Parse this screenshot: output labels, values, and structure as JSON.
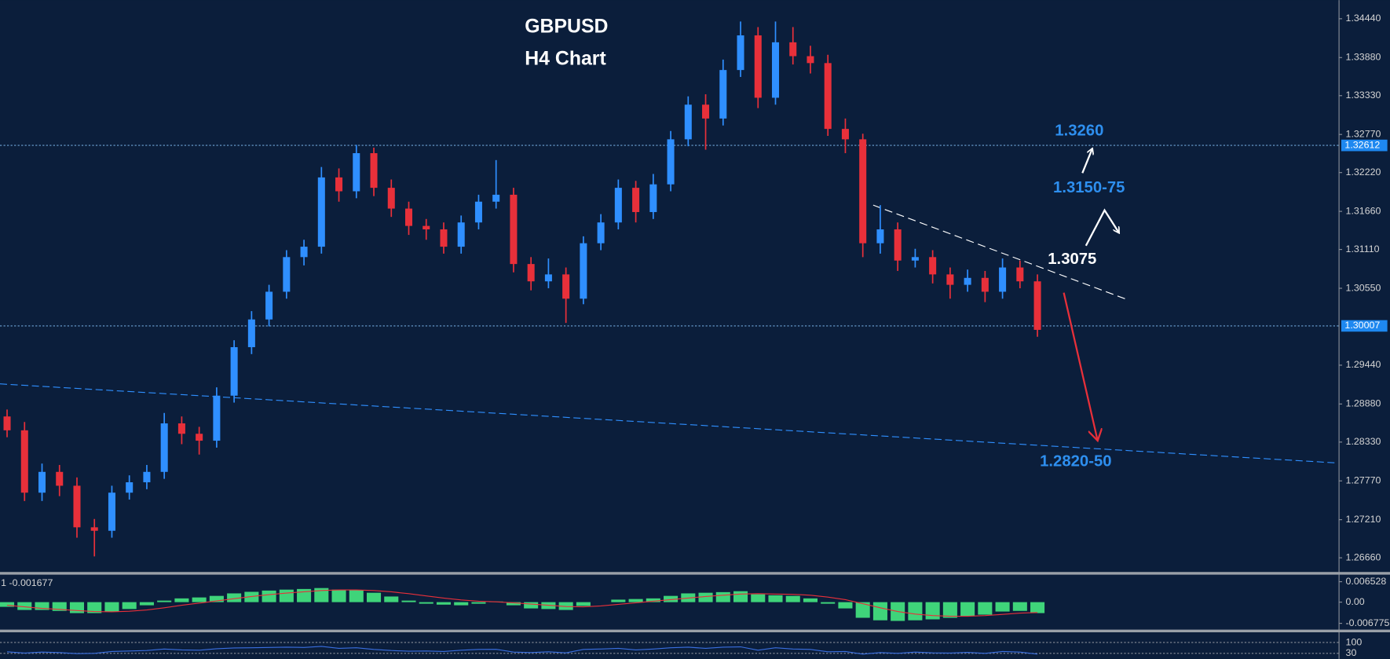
{
  "chart_data": {
    "type": "candlestick",
    "title": "GBPUSD",
    "subtitle": "H4 Chart",
    "bull_color": "#2f8fff",
    "bear_color": "#e8303a",
    "ylim": [
      1.26455,
      1.34709
    ],
    "yticks": [
      {
        "value": 1.3444,
        "label": "1.34440"
      },
      {
        "value": 1.3388,
        "label": "1.33880"
      },
      {
        "value": 1.3333,
        "label": "1.33330"
      },
      {
        "value": 1.3277,
        "label": "1.32770"
      },
      {
        "value": 1.3222,
        "label": "1.32220"
      },
      {
        "value": 1.3166,
        "label": "1.31660"
      },
      {
        "value": 1.3111,
        "label": "1.31110"
      },
      {
        "value": 1.3055,
        "label": "1.30550"
      },
      {
        "value": 1.2944,
        "label": "1.29440"
      },
      {
        "value": 1.2888,
        "label": "1.28880"
      },
      {
        "value": 1.2833,
        "label": "1.28330"
      },
      {
        "value": 1.2777,
        "label": "1.27770"
      },
      {
        "value": 1.2721,
        "label": "1.27210"
      },
      {
        "value": 1.2666,
        "label": "1.26660"
      }
    ],
    "levels": [
      {
        "value": 1.32612,
        "label": "1.32612"
      },
      {
        "value": 1.30007,
        "label": "1.30007"
      }
    ],
    "open": [
      1.287,
      1.285,
      1.276,
      1.279,
      1.277,
      1.271,
      1.2705,
      1.276,
      1.2775,
      1.279,
      1.286,
      1.2845,
      1.2835,
      1.29,
      1.297,
      1.301,
      1.305,
      1.31,
      1.3115,
      1.3215,
      1.3195,
      1.325,
      1.32,
      1.317,
      1.3145,
      1.314,
      1.3115,
      1.315,
      1.318,
      1.319,
      1.309,
      1.3065,
      1.3075,
      1.304,
      1.312,
      1.315,
      1.32,
      1.3165,
      1.3205,
      1.327,
      1.332,
      1.33,
      1.337,
      1.342,
      1.333,
      1.341,
      1.339,
      1.338,
      1.3285,
      1.327,
      1.312,
      1.314,
      1.3095,
      1.31,
      1.3075,
      1.306,
      1.307,
      1.305,
      1.3085,
      1.3065
    ],
    "high": [
      1.288,
      1.2862,
      1.2802,
      1.28,
      1.2782,
      1.2722,
      1.277,
      1.2785,
      1.28,
      1.2875,
      1.287,
      1.2855,
      1.2912,
      1.298,
      1.3022,
      1.306,
      1.311,
      1.3125,
      1.323,
      1.3228,
      1.3262,
      1.3258,
      1.3212,
      1.318,
      1.3155,
      1.315,
      1.316,
      1.319,
      1.324,
      1.32,
      1.31,
      1.3098,
      1.3085,
      1.313,
      1.3162,
      1.3212,
      1.321,
      1.322,
      1.3282,
      1.3332,
      1.3335,
      1.3385,
      1.344,
      1.3432,
      1.344,
      1.3432,
      1.3405,
      1.3392,
      1.33,
      1.3278,
      1.3175,
      1.315,
      1.3112,
      1.311,
      1.3085,
      1.3082,
      1.308,
      1.3098,
      1.3095,
      1.3075
    ],
    "low": [
      1.284,
      1.2748,
      1.2748,
      1.2755,
      1.2695,
      1.2668,
      1.2695,
      1.275,
      1.2765,
      1.278,
      1.283,
      1.2815,
      1.2825,
      1.289,
      1.296,
      1.3,
      1.304,
      1.3088,
      1.3105,
      1.318,
      1.3185,
      1.3188,
      1.3158,
      1.3132,
      1.3125,
      1.3105,
      1.3105,
      1.314,
      1.317,
      1.3078,
      1.3052,
      1.3055,
      1.3005,
      1.3032,
      1.311,
      1.314,
      1.315,
      1.3155,
      1.3195,
      1.326,
      1.3255,
      1.329,
      1.336,
      1.3315,
      1.332,
      1.3378,
      1.3365,
      1.3275,
      1.325,
      1.31,
      1.3105,
      1.308,
      1.3085,
      1.3062,
      1.304,
      1.305,
      1.3035,
      1.304,
      1.3055,
      1.2985
    ],
    "close": [
      1.285,
      1.276,
      1.279,
      1.277,
      1.271,
      1.2705,
      1.276,
      1.2775,
      1.279,
      1.286,
      1.2845,
      1.2835,
      1.29,
      1.297,
      1.301,
      1.305,
      1.31,
      1.3115,
      1.3215,
      1.3195,
      1.325,
      1.32,
      1.317,
      1.3145,
      1.314,
      1.3115,
      1.315,
      1.318,
      1.319,
      1.309,
      1.3065,
      1.3075,
      1.304,
      1.312,
      1.315,
      1.32,
      1.3165,
      1.3205,
      1.327,
      1.332,
      1.33,
      1.337,
      1.342,
      1.333,
      1.341,
      1.339,
      1.338,
      1.3285,
      1.327,
      1.312,
      1.314,
      1.3095,
      1.31,
      1.3075,
      1.306,
      1.307,
      1.305,
      1.3085,
      1.3065,
      1.2995
    ],
    "trendlines": [
      {
        "color": "#ffffff",
        "values": [
          1.3175,
          1.3038
        ]
      },
      {
        "color": "#2f8fff",
        "values": [
          1.2917,
          1.2803
        ]
      }
    ],
    "annotations": [
      {
        "text": "1.3260",
        "color": "#2e8fef"
      },
      {
        "text": "1.3150-75",
        "color": "#2e8fef"
      },
      {
        "text": "1.3075",
        "color": "#ffffff"
      },
      {
        "text": "1.2820-50",
        "color": "#2e8fef"
      }
    ],
    "indicators": [
      {
        "type": "macd",
        "header": "1 -0.001677",
        "ylim": [
          -0.0085,
          0.0085
        ],
        "yticks": [
          {
            "value": 0.006528,
            "label": "0.006528"
          },
          {
            "value": 0,
            "label": "0.00"
          },
          {
            "value": -0.006775,
            "label": "-0.006775"
          }
        ],
        "histogram_color": "#3fd47a",
        "signal_color": "#e8303a",
        "histogram": [
          -0.0015,
          -0.0025,
          -0.0025,
          -0.0028,
          -0.0035,
          -0.0035,
          -0.003,
          -0.0022,
          -0.001,
          0.0005,
          0.0012,
          0.0015,
          0.002,
          0.0028,
          0.0033,
          0.0037,
          0.004,
          0.0042,
          0.0045,
          0.004,
          0.0038,
          0.003,
          0.0018,
          0.0005,
          -0.0005,
          -0.0008,
          -0.001,
          -0.0005,
          0.0002,
          -0.001,
          -0.002,
          -0.0022,
          -0.0025,
          -0.0012,
          0.0,
          0.0008,
          0.001,
          0.0012,
          0.002,
          0.0028,
          0.003,
          0.0032,
          0.0035,
          0.0025,
          0.0022,
          0.002,
          0.0012,
          -0.0005,
          -0.002,
          -0.005,
          -0.0058,
          -0.006,
          -0.0058,
          -0.0055,
          -0.005,
          -0.0045,
          -0.004,
          -0.003,
          -0.0028,
          -0.0035
        ],
        "signal": [
          -0.001,
          -0.0015,
          -0.002,
          -0.0023,
          -0.0027,
          -0.003,
          -0.0031,
          -0.0029,
          -0.0025,
          -0.0018,
          -0.001,
          -0.0003,
          0.0004,
          0.0011,
          0.0018,
          0.0024,
          0.0029,
          0.0033,
          0.0037,
          0.0039,
          0.0039,
          0.0037,
          0.0033,
          0.0027,
          0.002,
          0.0013,
          0.0007,
          0.0003,
          0.0001,
          -0.0002,
          -0.0006,
          -0.001,
          -0.0014,
          -0.0015,
          -0.0012,
          -0.0007,
          -0.0002,
          0.0003,
          0.0008,
          0.0013,
          0.0018,
          0.0022,
          0.0026,
          0.0027,
          0.0026,
          0.0025,
          0.0022,
          0.0016,
          0.0008,
          -0.0005,
          -0.0018,
          -0.003,
          -0.0038,
          -0.0043,
          -0.0045,
          -0.0045,
          -0.0043,
          -0.0039,
          -0.0035,
          -0.0033
        ]
      },
      {
        "type": "rsi",
        "ylim": [
          0,
          160
        ],
        "yticks": [
          100,
          30
        ],
        "color": "#3a6fe0",
        "values": [
          40,
          32,
          38,
          35,
          28,
          30,
          42,
          45,
          48,
          58,
          52,
          50,
          60,
          65,
          66,
          68,
          70,
          68,
          75,
          62,
          66,
          55,
          48,
          44,
          45,
          42,
          50,
          55,
          56,
          38,
          35,
          40,
          33,
          55,
          58,
          62,
          52,
          58,
          66,
          70,
          62,
          70,
          72,
          50,
          66,
          58,
          55,
          40,
          42,
          25,
          35,
          30,
          38,
          33,
          32,
          36,
          30,
          42,
          38,
          25
        ]
      }
    ]
  }
}
